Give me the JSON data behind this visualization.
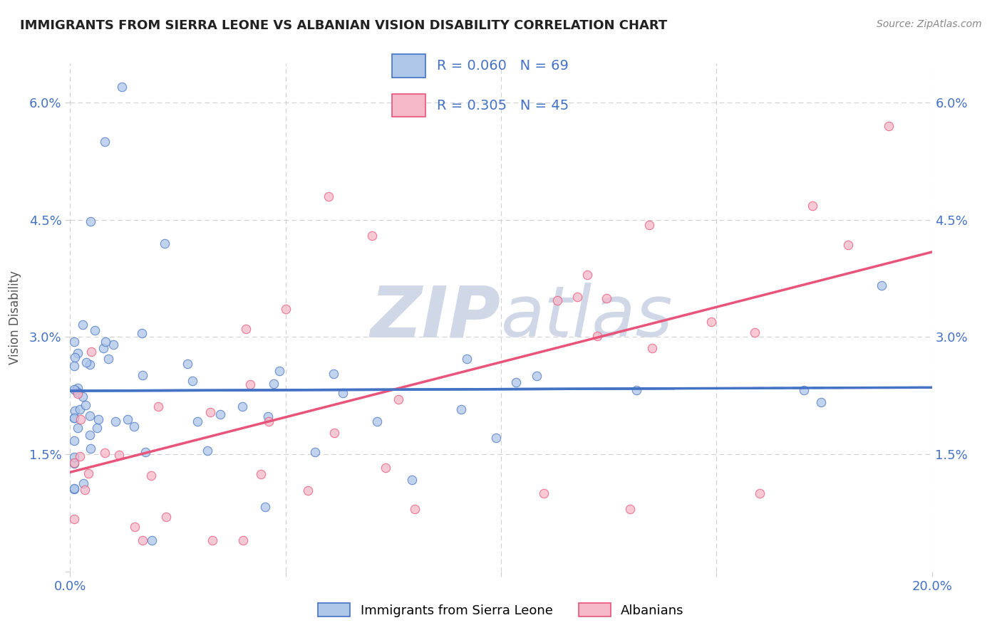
{
  "title": "IMMIGRANTS FROM SIERRA LEONE VS ALBANIAN VISION DISABILITY CORRELATION CHART",
  "source": "Source: ZipAtlas.com",
  "ylabel": "Vision Disability",
  "legend_labels": [
    "Immigrants from Sierra Leone",
    "Albanians"
  ],
  "r_values": [
    0.06,
    0.305
  ],
  "n_values": [
    69,
    45
  ],
  "scatter_color_blue": "#aec6e8",
  "scatter_color_pink": "#f5b8c8",
  "line_color_blue": "#4472c4",
  "line_color_pink": "#e8547a",
  "watermark_color": "#d0d8e8",
  "xmin": 0.0,
  "xmax": 0.2,
  "ymin": 0.0,
  "ymax": 0.065,
  "yticks": [
    0.0,
    0.015,
    0.03,
    0.045,
    0.06
  ],
  "xticks": [
    0.0,
    0.05,
    0.1,
    0.15,
    0.2
  ],
  "background_color": "#ffffff",
  "grid_color": "#d0d0d0",
  "title_color": "#222222",
  "axis_label_color": "#555555",
  "tick_label_color": "#4472c4",
  "legend_text_color": "#333333"
}
